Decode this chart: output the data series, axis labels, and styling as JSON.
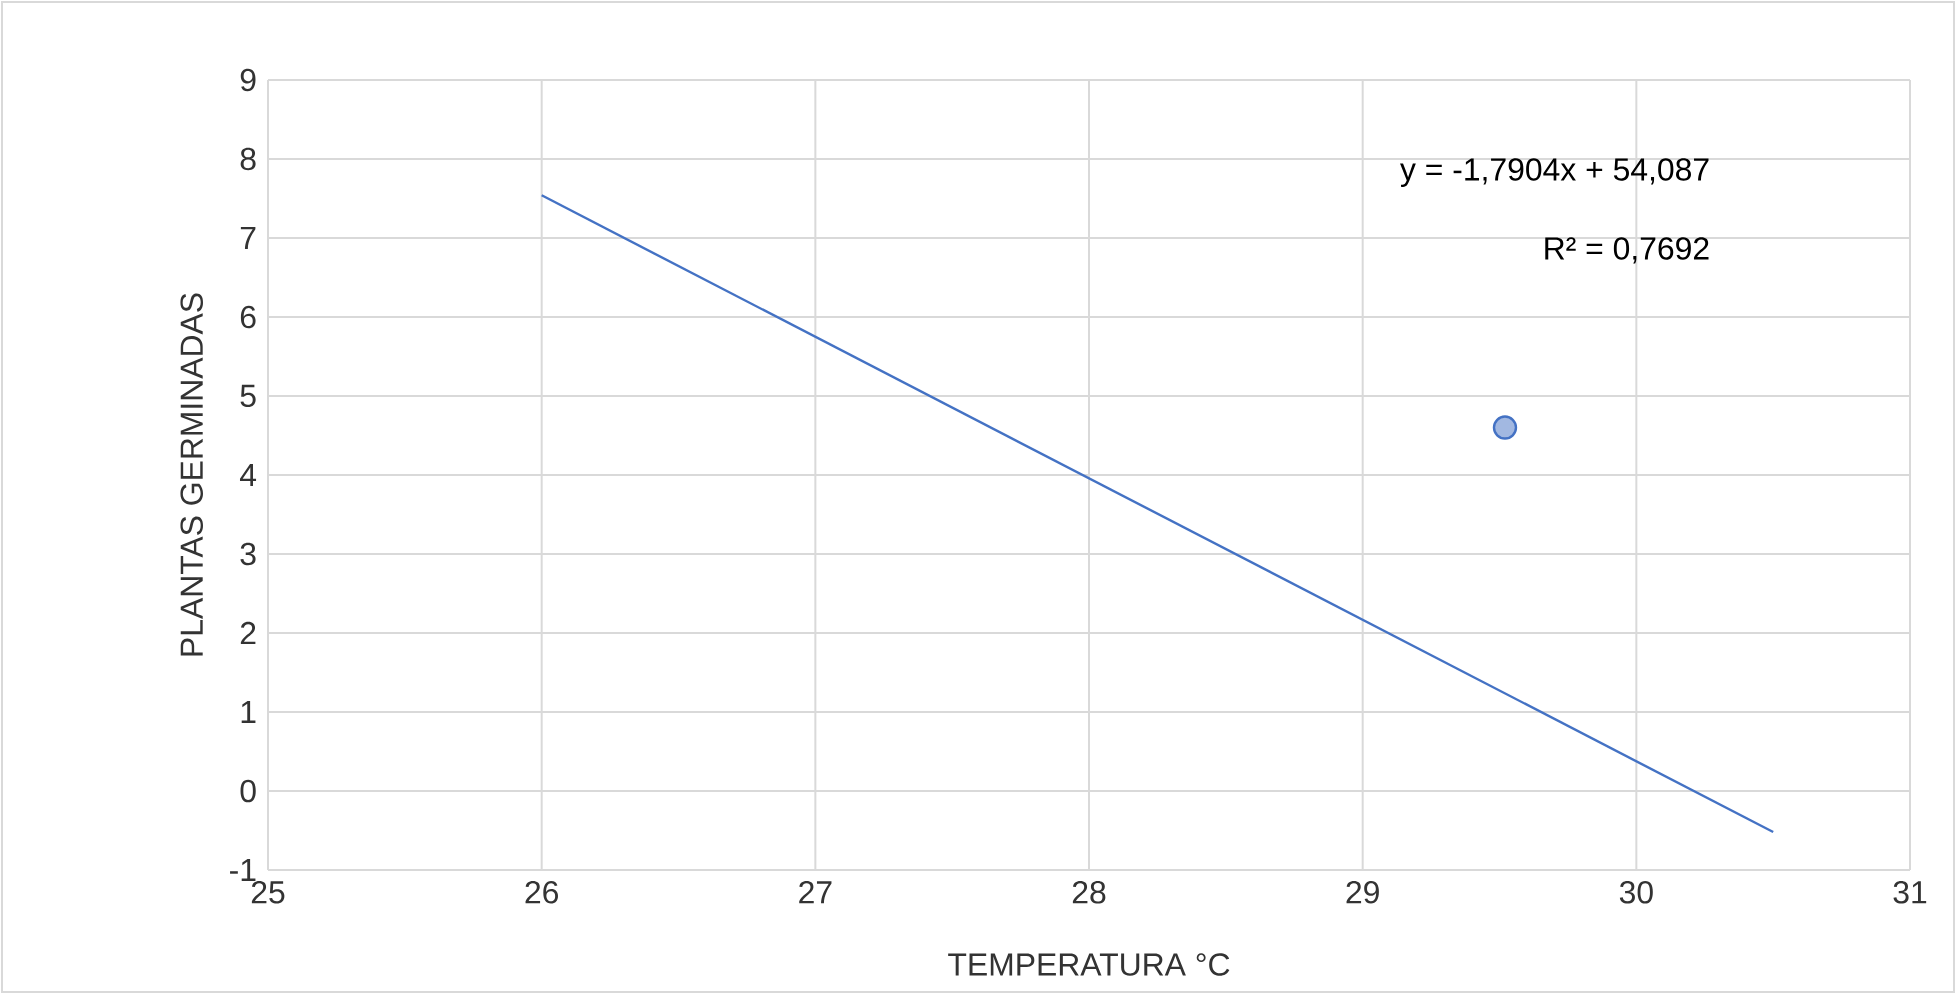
{
  "chart_data": {
    "type": "scatter",
    "xlabel": "TEMPERATURA °C",
    "ylabel": "PLANTAS GERMINADAS",
    "series": [
      {
        "x": [
          29.52
        ],
        "values": [
          4.6
        ],
        "color": "#4472c4",
        "marker": "circle"
      },
      {
        "type": "line",
        "x": [
          26,
          30.5
        ],
        "values": [
          7.54,
          -0.52
        ],
        "color": "#4472c4"
      }
    ],
    "annotations": [
      "y = -1,7904x + 54,087",
      "R² = 0,7692"
    ],
    "xlim": [
      25,
      31
    ],
    "xticks": [
      25,
      26,
      27,
      28,
      29,
      30,
      31
    ],
    "ylim": [
      -1,
      9
    ],
    "yticks": [
      -1,
      0,
      1,
      2,
      3,
      4,
      5,
      6,
      7,
      8,
      9
    ],
    "grid": true
  }
}
